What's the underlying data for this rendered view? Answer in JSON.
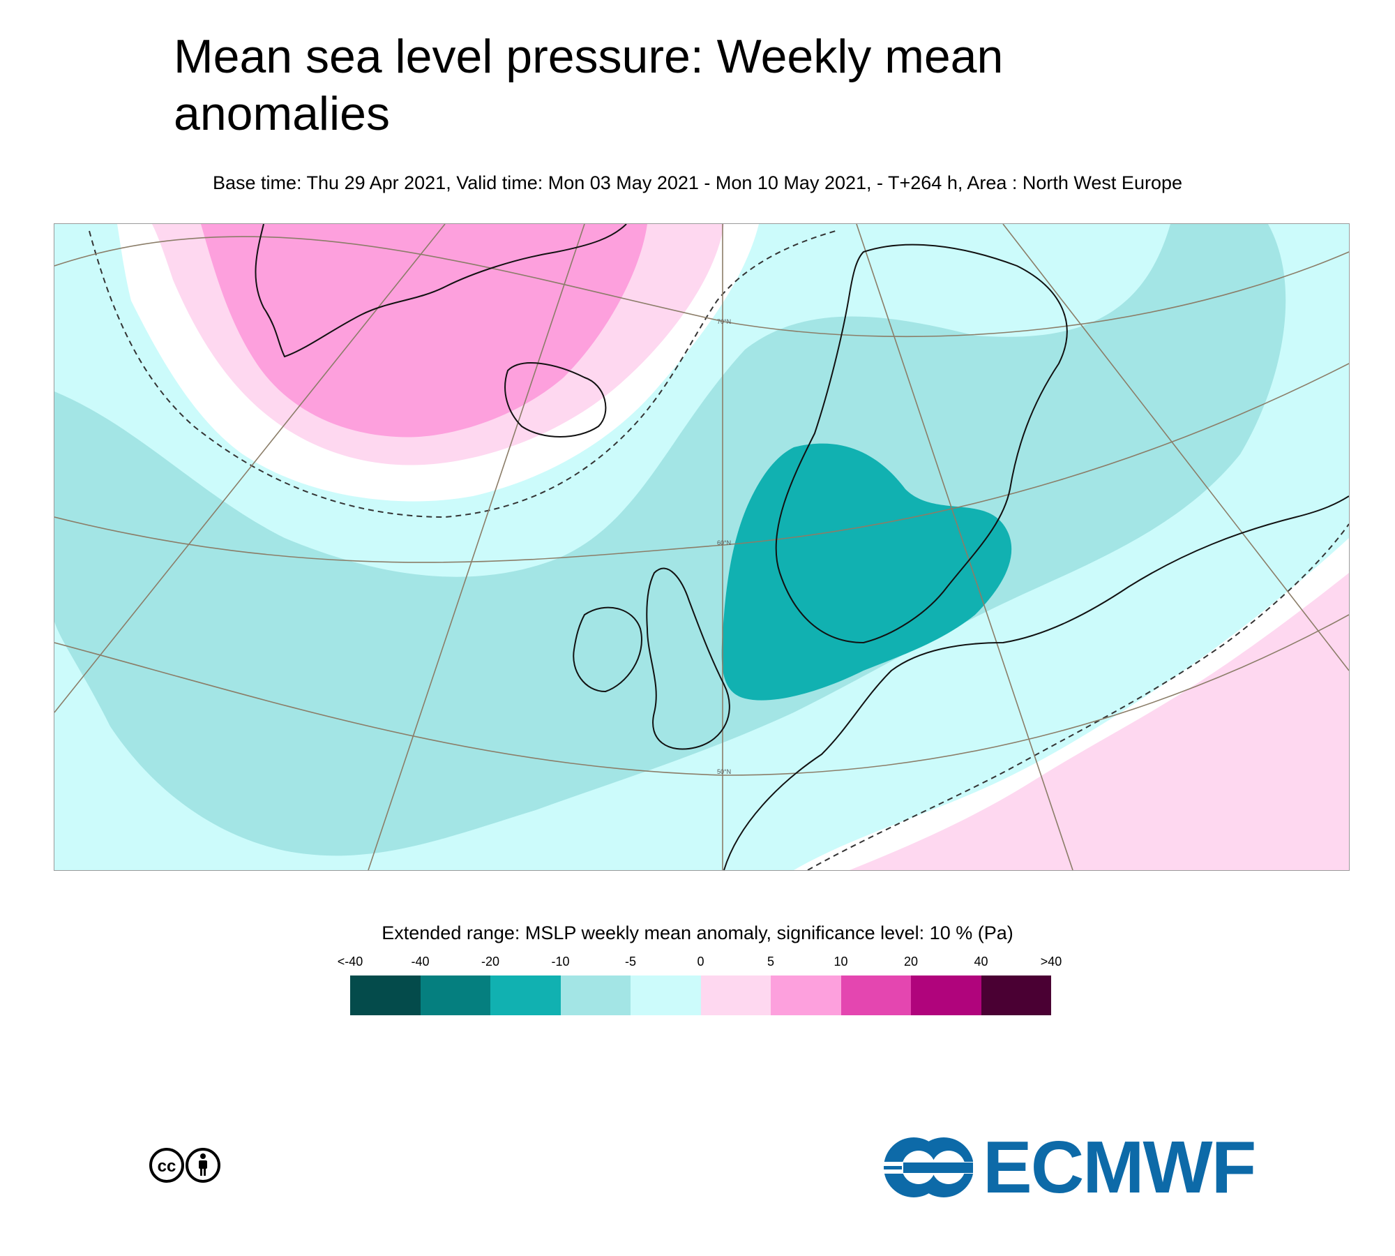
{
  "title": "Mean sea level pressure: Weekly mean anomalies",
  "subtitle": "Base time: Thu 29 Apr 2021, Valid time: Mon 03 May 2021 - Mon 10 May 2021, - T+264 h, Area : North West Europe",
  "map": {
    "latitude_labels": [
      "70°N",
      "60°N",
      "50°N"
    ]
  },
  "legend": {
    "title": "Extended range: MSLP weekly mean anomaly, significance level: 10 % (Pa)",
    "labels": [
      "<-40",
      "-40",
      "-20",
      "-10",
      "-5",
      "0",
      "5",
      "10",
      "20",
      "40",
      ">40"
    ],
    "colors": [
      "#044b4b",
      "#057f7f",
      "#11b1b1",
      "#a3e5e5",
      "#ccfbfb",
      "#fed8f0",
      "#fda0dd",
      "#e446b0",
      "#b0047c",
      "#4a0033"
    ]
  },
  "logos": {
    "organisation": "ECMWF"
  }
}
